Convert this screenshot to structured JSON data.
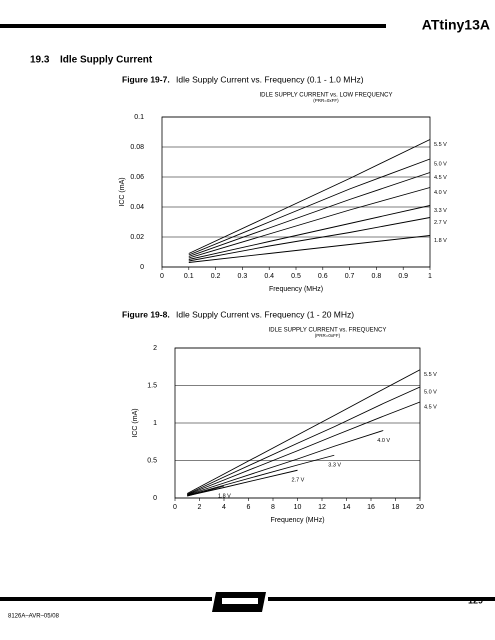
{
  "header": {
    "title": "ATtiny13A"
  },
  "section": {
    "number": "19.3",
    "title": "Idle Supply Current"
  },
  "footer": {
    "doc_id": "8126A–AVR–05/08",
    "page": "129"
  },
  "chart_data": [
    {
      "type": "line",
      "figure_label": "Figure 19-7.",
      "caption": "Idle Supply Current vs. Frequency (0.1 - 1.0 MHz)",
      "title": "IDLE SUPPLY CURRENT vs. LOW FREQUENCY",
      "subtitle": "(PRR=0xFF)",
      "xlabel": "Frequency (MHz)",
      "ylabel": "ICC (mA)",
      "color": "#000000",
      "grid": true,
      "xlim": [
        0,
        1
      ],
      "ylim": [
        0,
        0.1
      ],
      "xticks": [
        0,
        0.1,
        0.2,
        0.3,
        0.4,
        0.5,
        0.6,
        0.7,
        0.8,
        0.9,
        1
      ],
      "yticks": [
        0,
        0.02,
        0.04,
        0.06,
        0.08,
        0.1
      ],
      "x": [
        0.1,
        0.4,
        0.7,
        1.0
      ],
      "series": [
        {
          "name": "5.5 V",
          "values": [
            0.009,
            0.034,
            0.059,
            0.085
          ]
        },
        {
          "name": "5.0 V",
          "values": [
            0.008,
            0.03,
            0.052,
            0.072
          ]
        },
        {
          "name": "4.5 V",
          "values": [
            0.007,
            0.026,
            0.045,
            0.063
          ]
        },
        {
          "name": "4.0 V",
          "values": [
            0.006,
            0.022,
            0.038,
            0.053
          ]
        },
        {
          "name": "3.3 V",
          "values": [
            0.005,
            0.017,
            0.029,
            0.041
          ]
        },
        {
          "name": "2.7 V",
          "values": [
            0.004,
            0.014,
            0.023,
            0.033
          ]
        },
        {
          "name": "1.8 V",
          "values": [
            0.003,
            0.009,
            0.015,
            0.021
          ]
        }
      ]
    },
    {
      "type": "line",
      "figure_label": "Figure 19-8.",
      "caption": "Idle Supply Current vs. Frequency (1 - 20 MHz)",
      "title": "IDLE SUPPLY CURRENT vs. FREQUENCY",
      "subtitle": "(PRR=0xFF)",
      "xlabel": "Frequency (MHz)",
      "ylabel": "ICC (mA)",
      "color": "#000000",
      "grid": true,
      "xlim": [
        0,
        20
      ],
      "ylim": [
        0,
        2
      ],
      "xticks": [
        0,
        2,
        4,
        6,
        8,
        10,
        12,
        14,
        16,
        18,
        20
      ],
      "yticks": [
        0,
        0.5,
        1,
        1.5,
        2
      ],
      "x": [
        1,
        4,
        10,
        13,
        17,
        20
      ],
      "series": [
        {
          "name": "5.5 V",
          "values": [
            0.06,
            0.32,
            0.84,
            1.1,
            1.45,
            1.71
          ]
        },
        {
          "name": "5.0 V",
          "values": [
            0.05,
            0.28,
            0.73,
            0.95,
            1.26,
            1.48
          ]
        },
        {
          "name": "4.5 V",
          "values": [
            0.045,
            0.24,
            0.63,
            0.83,
            1.09,
            1.28
          ]
        },
        {
          "name": "4.0 V",
          "values": [
            0.04,
            0.2,
            0.52,
            0.69,
            0.9,
            null
          ]
        },
        {
          "name": "3.3 V",
          "values": [
            0.035,
            0.17,
            0.44,
            0.57,
            null,
            null
          ]
        },
        {
          "name": "2.7 V",
          "values": [
            0.03,
            0.14,
            0.37,
            null,
            null,
            null
          ]
        },
        {
          "name": "1.8 V",
          "values": [
            0.025,
            0.16,
            null,
            null,
            null,
            null
          ]
        }
      ]
    }
  ]
}
